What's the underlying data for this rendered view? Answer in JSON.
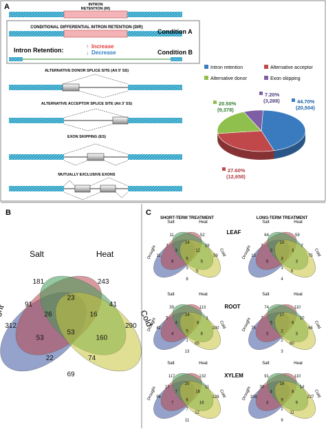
{
  "panels": {
    "a": "A",
    "b": "B",
    "c": "C"
  },
  "panel_a": {
    "ir_label": [
      "INTRON",
      "RETENTION (IR)"
    ],
    "dir_title": "CONDITIONAL DIFFERENTIAL INTRON RETENTION (DIR)",
    "condition_a": "Condition A",
    "condition_b": "Condition  B",
    "intron_retention": "Intron Retention:",
    "increase": "Increase",
    "decrease": "Decrease",
    "alt5_title": "ALTERNATIVE DONOR SPLICE SITE (Alt 5' SS)",
    "alt3_title": "ALTERNATIVE ACCEPTOR SPLICE SITE (Alt 3' SS)",
    "es_title": "EXON SKIPPING (ES)",
    "mee_title": "MUTUALLY EXCLUSIVE  EXONS",
    "colors": {
      "exon": "#2fa3c6",
      "intron_box": "#f2aeb1",
      "increase": "#e23b3b",
      "decrease": "#2d7fc1",
      "green": "#2e8b2e"
    }
  },
  "chart_data": {
    "type": "pie",
    "legend": [
      {
        "name": "Intron retention",
        "color": "#3a7bbf"
      },
      {
        "name": "Alternative acceptor",
        "color": "#c0474a"
      },
      {
        "name": "Alternative donor",
        "color": "#8fbf4d"
      },
      {
        "name": "Exon skipping",
        "color": "#7e5fa4"
      }
    ],
    "slices": [
      {
        "name": "Intron retention",
        "percent": 44.7,
        "count": 20504,
        "label_pct": "44.70%",
        "label_count": "(20,504)",
        "color": "#3a7bbf"
      },
      {
        "name": "Alternative acceptor",
        "percent": 27.6,
        "count": 12658,
        "label_pct": "27.60%",
        "label_count": "(12,658)",
        "color": "#c0474a"
      },
      {
        "name": "Alternative donor",
        "percent": 20.5,
        "count": 9378,
        "label_pct": "20.50%",
        "label_count": "(9,378)",
        "color": "#8fbf4d"
      },
      {
        "name": "Exon skipping",
        "percent": 7.2,
        "count": 3288,
        "label_pct": "7.20%",
        "label_count": "(3,288)",
        "color": "#7e5fa4"
      }
    ]
  },
  "venn_b": {
    "sets": [
      "Drought",
      "Salt",
      "Heat",
      "Cold"
    ],
    "values": {
      "D": "312",
      "S": "181",
      "H": "243",
      "C": "290",
      "DS": "91",
      "SH": "23",
      "HC": "41",
      "DC": "22",
      "DH": "160",
      "SC": "74",
      "DSH": "26",
      "SHC": "16",
      "DSC": "53",
      "DHC": "69",
      "DSHC": "53"
    },
    "set_colors": {
      "drought": "#3e56a0",
      "salt": "#b8474e",
      "heat": "#3f9a56",
      "cold": "#c6c43c"
    }
  },
  "panel_c": {
    "short_term": "SHORT-TERM TREATMENT",
    "long_term": "LONG-TERM TREATMENT",
    "tissues": [
      "LEAF",
      "ROOT",
      "XYLEM"
    ],
    "set_labels": {
      "drought": "Drought",
      "salt": "Salt",
      "heat": "Heat",
      "cold": "Cold"
    },
    "venns": [
      {
        "D": "11",
        "S": "11",
        "H": "52",
        "C": "59",
        "DS": "7",
        "SH": "14",
        "HC": "19",
        "DH": "5",
        "SC": "5",
        "DSH": "3",
        "SHC": "12",
        "DSC": "9",
        "DHC": "8",
        "DSHC": "5",
        "EX": "3"
      },
      {
        "D": "13",
        "S": "64",
        "H": "59",
        "C": "75",
        "DS": "7",
        "SH": "10",
        "HC": "7",
        "DH": "3",
        "SC": "6",
        "DSH": "3",
        "SHC": "3",
        "DSC": "6",
        "DHC": "4",
        "DSHC": "3",
        "EX": "3"
      },
      {
        "D": "42",
        "S": "39",
        "H": "113",
        "C": "100",
        "DS": "5",
        "SH": "14",
        "HC": "1",
        "DH": "6",
        "SC": "65",
        "DSH": "4",
        "SHC": "8",
        "DSC": "4",
        "DHC": "13",
        "DSHC": "5",
        "EX": "1"
      },
      {
        "D": "75",
        "S": "74",
        "H": "110",
        "C": "66",
        "DS": "7",
        "SH": "17",
        "HC": "10",
        "DH": "3",
        "SC": "60",
        "DSH": "5",
        "SHC": "6",
        "DSC": "3",
        "DHC": "3",
        "DSHC": "2",
        "EX": "2"
      },
      {
        "D": "96",
        "S": "117",
        "H": "132",
        "C": "128",
        "DS": "17",
        "SH": "20",
        "HC": "11",
        "DH": "16",
        "SC": "12",
        "DSH": "7",
        "SHC": "16",
        "DSC": "7",
        "DHC": "11",
        "DSHC": "6",
        "EX": "7"
      },
      {
        "D": "108",
        "S": "91",
        "H": "110",
        "C": "227",
        "DS": "30",
        "SH": "16",
        "HC": "14",
        "DH": "9",
        "SC": "11",
        "DSH": "4",
        "SHC": "8",
        "DSC": "3",
        "DHC": "9",
        "DSHC": "9",
        "EX": "2"
      }
    ]
  }
}
